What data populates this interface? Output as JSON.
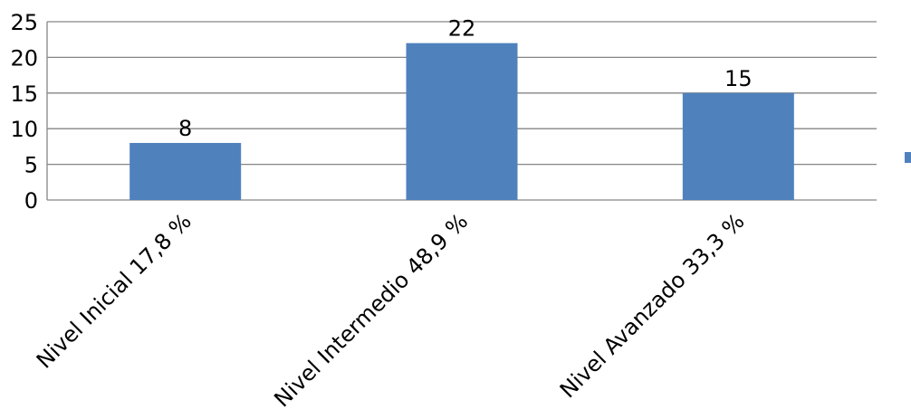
{
  "chart_data": {
    "type": "bar",
    "categories": [
      "Nivel Inicial  17,8 %",
      "Nivel Intermedio 48,9 %",
      "Nivel Avanzado 33,3 %"
    ],
    "values": [
      8,
      22,
      15
    ],
    "data_labels": [
      "8",
      "22",
      "15"
    ],
    "y_ticks": [
      "0",
      "5",
      "10",
      "15",
      "20",
      "25"
    ],
    "ylim": [
      0,
      25
    ],
    "grid": true,
    "legend_position": "right",
    "colors": {
      "bar": "#4f81bd",
      "grid": "#868686",
      "axis": "#868686"
    }
  }
}
